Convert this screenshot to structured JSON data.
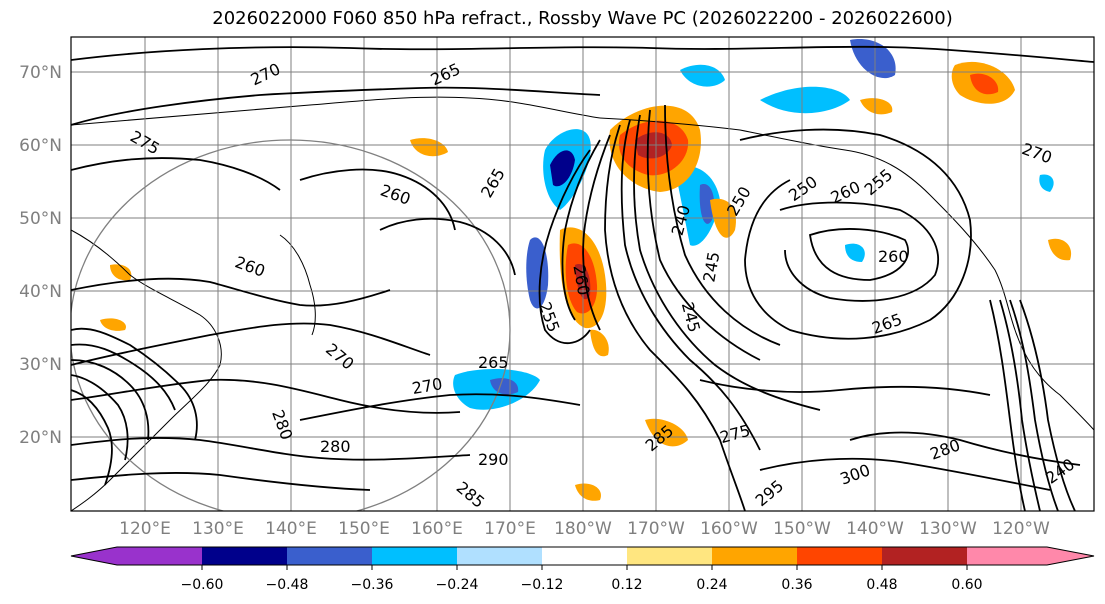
{
  "title": "2026022000 F060 850 hPa refract., Rossby Wave PC (2026022200 - 2026022600)",
  "map": {
    "lat_labels": [
      "70°N",
      "60°N",
      "50°N",
      "40°N",
      "30°N",
      "20°N"
    ],
    "lon_labels": [
      "120°E",
      "130°E",
      "140°E",
      "150°E",
      "160°E",
      "170°E",
      "180°W",
      "170°W",
      "160°W",
      "150°W",
      "140°W",
      "130°W",
      "120°W"
    ],
    "contour_labels": [
      "270",
      "265",
      "275",
      "260",
      "265",
      "260",
      "255",
      "250",
      "245",
      "240",
      "270",
      "260",
      "255",
      "250",
      "245",
      "240",
      "260",
      "265",
      "270",
      "285",
      "290",
      "295",
      "300",
      "280",
      "280",
      "275",
      "260",
      "265",
      "270",
      "285",
      "280"
    ]
  },
  "colorbar": {
    "ticks": [
      "−0.60",
      "−0.48",
      "−0.36",
      "−0.24",
      "−0.12",
      "0.12",
      "0.24",
      "0.36",
      "0.48",
      "0.60"
    ],
    "colors": [
      "#9932cc",
      "#00008b",
      "#3a5fcd",
      "#00bfff",
      "#b0e0ff",
      "#ffffff",
      "#ffe680",
      "#ffa500",
      "#ff4500",
      "#b22222",
      "#ff88aa"
    ]
  }
}
